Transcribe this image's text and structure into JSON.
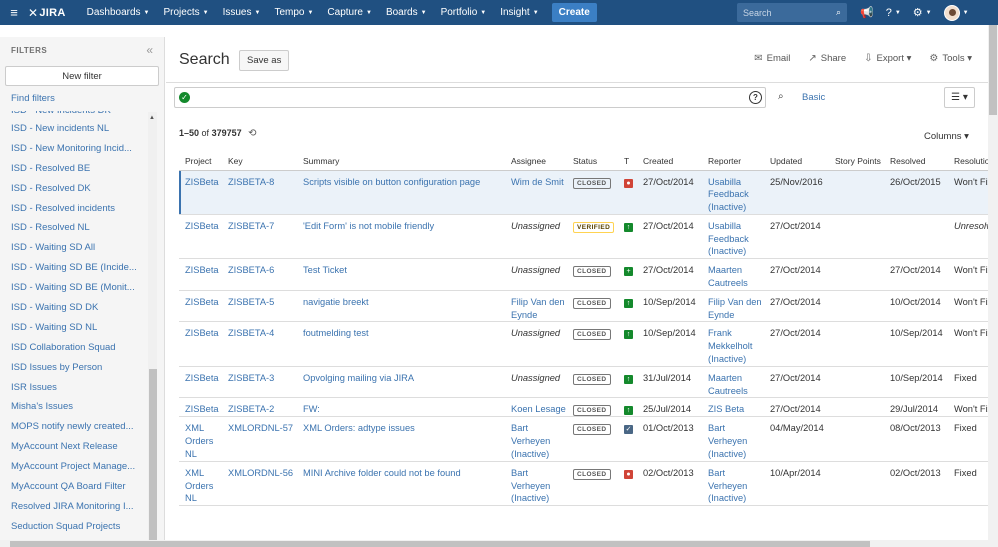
{
  "nav": {
    "logo": "JIRA",
    "menu": [
      "Dashboards",
      "Projects",
      "Issues",
      "Tempo",
      "Capture",
      "Boards",
      "Portfolio",
      "Insight"
    ],
    "create": "Create",
    "search_placeholder": "Search"
  },
  "sidebar": {
    "title": "FILTERS",
    "new_filter": "New filter",
    "find_filters": "Find filters",
    "filters": [
      "ISD - New Incidents DK",
      "ISD - New incidents NL",
      "ISD - New Monitoring Incid...",
      "ISD - Resolved BE",
      "ISD - Resolved DK",
      "ISD - Resolved incidents",
      "ISD - Resolved NL",
      "ISD - Waiting SD All",
      "ISD - Waiting SD BE (Incide...",
      "ISD - Waiting SD BE (Monit...",
      "ISD - Waiting SD DK",
      "ISD - Waiting SD NL",
      "ISD Collaboration Squad",
      "ISD Issues by Person",
      "ISR Issues",
      "Misha's Issues",
      "MOPS notify newly created...",
      "MyAccount Next Release",
      "MyAccount Project Manage...",
      "MyAccount QA Board Filter",
      "Resolved JIRA Monitoring I...",
      "Seduction Squad Projects"
    ]
  },
  "main": {
    "title": "Search",
    "save_as": "Save as",
    "actions": [
      "Email",
      "Share",
      "Export",
      "Tools"
    ],
    "basic": "Basic",
    "count_range": "1–50",
    "count_of": "of",
    "count_total": "379757",
    "columns_label": "Columns",
    "headers": [
      "Project",
      "Key",
      "Summary",
      "Assignee",
      "Status",
      "T",
      "Created",
      "Reporter",
      "Updated",
      "Story Points",
      "Resolved",
      "Resolution"
    ]
  },
  "issues": [
    {
      "project": "ZISBeta",
      "key": "ZISBETA-8",
      "summary": "Scripts visible on button configuration page",
      "assignee": "Wim de Smit",
      "unassigned": false,
      "status": "CLOSED",
      "type": "bug",
      "created": "27/Oct/2014",
      "reporter": "Usabilla Feedback (Inactive)",
      "updated": "25/Nov/2016",
      "story_points": "",
      "resolved": "26/Oct/2015",
      "resolution": "Won't Fix",
      "unresolved": false
    },
    {
      "project": "ZISBeta",
      "key": "ZISBETA-7",
      "summary": "'Edit Form' is not mobile friendly",
      "assignee": "Unassigned",
      "unassigned": true,
      "status": "VERIFIED",
      "type": "improvement",
      "created": "27/Oct/2014",
      "reporter": "Usabilla Feedback (Inactive)",
      "updated": "27/Oct/2014",
      "story_points": "",
      "resolved": "",
      "resolution": "Unresolved",
      "unresolved": true
    },
    {
      "project": "ZISBeta",
      "key": "ZISBETA-6",
      "summary": "Test Ticket",
      "assignee": "Unassigned",
      "unassigned": true,
      "status": "CLOSED",
      "type": "new-feature",
      "created": "27/Oct/2014",
      "reporter": "Maarten Cautreels",
      "updated": "27/Oct/2014",
      "story_points": "",
      "resolved": "27/Oct/2014",
      "resolution": "Won't Fix",
      "unresolved": false
    },
    {
      "project": "ZISBeta",
      "key": "ZISBETA-5",
      "summary": "navigatie breekt",
      "assignee": "Filip Van den Eynde",
      "unassigned": false,
      "status": "CLOSED",
      "type": "improvement",
      "created": "10/Sep/2014",
      "reporter": "Filip Van den Eynde",
      "updated": "27/Oct/2014",
      "story_points": "",
      "resolved": "10/Oct/2014",
      "resolution": "Won't Fix",
      "unresolved": false
    },
    {
      "project": "ZISBeta",
      "key": "ZISBETA-4",
      "summary": "foutmelding test",
      "assignee": "Unassigned",
      "unassigned": true,
      "status": "CLOSED",
      "type": "improvement",
      "created": "10/Sep/2014",
      "reporter": "Frank Mekkelholt (Inactive)",
      "updated": "27/Oct/2014",
      "story_points": "",
      "resolved": "10/Sep/2014",
      "resolution": "Won't Fix",
      "unresolved": false
    },
    {
      "project": "ZISBeta",
      "key": "ZISBETA-3",
      "summary": "Opvolging mailing via JIRA",
      "assignee": "Unassigned",
      "unassigned": true,
      "status": "CLOSED",
      "type": "improvement",
      "created": "31/Jul/2014",
      "reporter": "Maarten Cautreels",
      "updated": "27/Oct/2014",
      "story_points": "",
      "resolved": "10/Sep/2014",
      "resolution": "Fixed",
      "unresolved": false
    },
    {
      "project": "ZISBeta",
      "key": "ZISBETA-2",
      "summary": "FW:",
      "assignee": "Koen Lesage",
      "unassigned": false,
      "status": "CLOSED",
      "type": "improvement",
      "created": "25/Jul/2014",
      "reporter": "ZIS Beta",
      "updated": "27/Oct/2014",
      "story_points": "",
      "resolved": "29/Jul/2014",
      "resolution": "Won't Fix",
      "unresolved": false
    },
    {
      "project": "XML Orders NL",
      "key": "XMLORDNL-57",
      "summary": "XML Orders: adtype issues",
      "assignee": "Bart Verheyen (Inactive)",
      "unassigned": false,
      "status": "CLOSED",
      "type": "task",
      "created": "01/Oct/2013",
      "reporter": "Bart Verheyen (Inactive)",
      "updated": "04/May/2014",
      "story_points": "",
      "resolved": "08/Oct/2013",
      "resolution": "Fixed",
      "unresolved": false
    },
    {
      "project": "XML Orders NL",
      "key": "XMLORDNL-56",
      "summary": "MINI Archive folder could not be found",
      "assignee": "Bart Verheyen (Inactive)",
      "unassigned": false,
      "status": "CLOSED",
      "type": "bug",
      "created": "02/Oct/2013",
      "reporter": "Bart Verheyen (Inactive)",
      "updated": "10/Apr/2014",
      "story_points": "",
      "resolved": "02/Oct/2013",
      "resolution": "Fixed",
      "unresolved": false
    }
  ],
  "colors": {
    "nav_bg": "#205081",
    "link": "#3b73af",
    "bug": "#d04437",
    "improvement": "#14892c",
    "new-feature": "#14892c",
    "task": "#4a6785",
    "create_btn": "#3b7fc4"
  },
  "type_icons": {
    "bug": "●",
    "improvement": "↑",
    "new-feature": "+",
    "task": "✓"
  }
}
